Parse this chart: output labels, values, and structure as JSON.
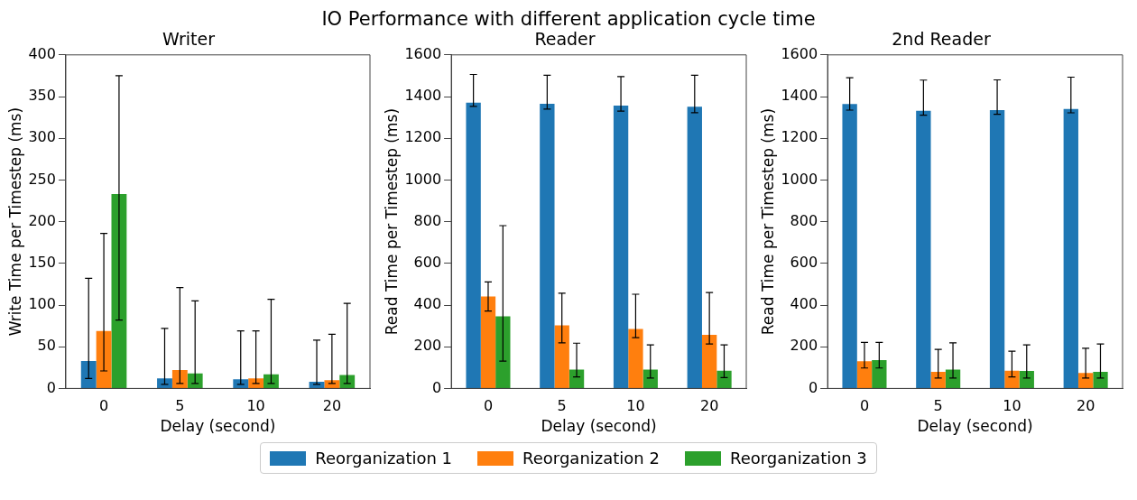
{
  "chart_data": [
    {
      "type": "bar",
      "title": "Writer",
      "annotations": [
        "IO Performance with different application cycle time"
      ],
      "xlabel": "Delay (second)",
      "ylabel": "Write Time per Timestep (ms)",
      "categories": [
        "0",
        "5",
        "10",
        "20"
      ],
      "ylim": [
        0,
        400
      ],
      "yticks": [
        0,
        50,
        100,
        150,
        200,
        250,
        300,
        350,
        400
      ],
      "grid": false,
      "legend": "bottom",
      "series": [
        {
          "name": "Reorganization 1",
          "color": "#1f77b4",
          "values": [
            33,
            12,
            11,
            8
          ],
          "errors": [
            [
              12,
              132
            ],
            [
              5,
              72
            ],
            [
              5,
              69
            ],
            [
              5,
              58
            ]
          ]
        },
        {
          "name": "Reorganization 2",
          "color": "#ff7f0e",
          "values": [
            69,
            22,
            12,
            10
          ],
          "errors": [
            [
              21,
              186
            ],
            [
              6,
              121
            ],
            [
              6,
              69
            ],
            [
              6,
              65
            ]
          ]
        },
        {
          "name": "Reorganization 3",
          "color": "#2ca02c",
          "values": [
            233,
            18,
            17,
            16
          ],
          "errors": [
            [
              82,
              375
            ],
            [
              6,
              105
            ],
            [
              6,
              107
            ],
            [
              6,
              102
            ]
          ]
        }
      ]
    },
    {
      "type": "bar",
      "title": "Reader",
      "xlabel": "Delay (second)",
      "ylabel": "Read Time per Timestep (ms)",
      "categories": [
        "0",
        "5",
        "10",
        "20"
      ],
      "ylim": [
        0,
        1600
      ],
      "yticks": [
        0,
        200,
        400,
        600,
        800,
        1000,
        1200,
        1400,
        1600
      ],
      "grid": false,
      "series": [
        {
          "color": "#1f77b4",
          "values": [
            1371,
            1365,
            1357,
            1351
          ],
          "errors": [
            [
              1353,
              1506
            ],
            [
              1340,
              1502
            ],
            [
              1330,
              1496
            ],
            [
              1323,
              1502
            ]
          ]
        },
        {
          "color": "#ff7f0e",
          "values": [
            441,
            303,
            285,
            257
          ],
          "errors": [
            [
              371,
              511
            ],
            [
              219,
              457
            ],
            [
              244,
              452
            ],
            [
              213,
              460
            ]
          ]
        },
        {
          "color": "#2ca02c",
          "values": [
            346,
            90,
            90,
            85
          ],
          "errors": [
            [
              131,
              781
            ],
            [
              55,
              217
            ],
            [
              50,
              209
            ],
            [
              52,
              209
            ]
          ]
        }
      ]
    },
    {
      "type": "bar",
      "title": "2nd Reader",
      "xlabel": "Delay (second)",
      "ylabel": "Read Time per Timestep (ms)",
      "categories": [
        "0",
        "5",
        "10",
        "20"
      ],
      "ylim": [
        0,
        1600
      ],
      "yticks": [
        0,
        200,
        400,
        600,
        800,
        1000,
        1200,
        1400,
        1600
      ],
      "grid": false,
      "series": [
        {
          "color": "#1f77b4",
          "values": [
            1364,
            1332,
            1335,
            1341
          ],
          "errors": [
            [
              1335,
              1490
            ],
            [
              1311,
              1479
            ],
            [
              1315,
              1480
            ],
            [
              1322,
              1493
            ]
          ]
        },
        {
          "color": "#ff7f0e",
          "values": [
            131,
            80,
            85,
            74
          ],
          "errors": [
            [
              98,
              221
            ],
            [
              50,
              187
            ],
            [
              55,
              179
            ],
            [
              50,
              193
            ]
          ]
        },
        {
          "color": "#2ca02c",
          "values": [
            136,
            90,
            84,
            80
          ],
          "errors": [
            [
              98,
              221
            ],
            [
              50,
              219
            ],
            [
              50,
              209
            ],
            [
              50,
              213
            ]
          ]
        }
      ]
    }
  ]
}
